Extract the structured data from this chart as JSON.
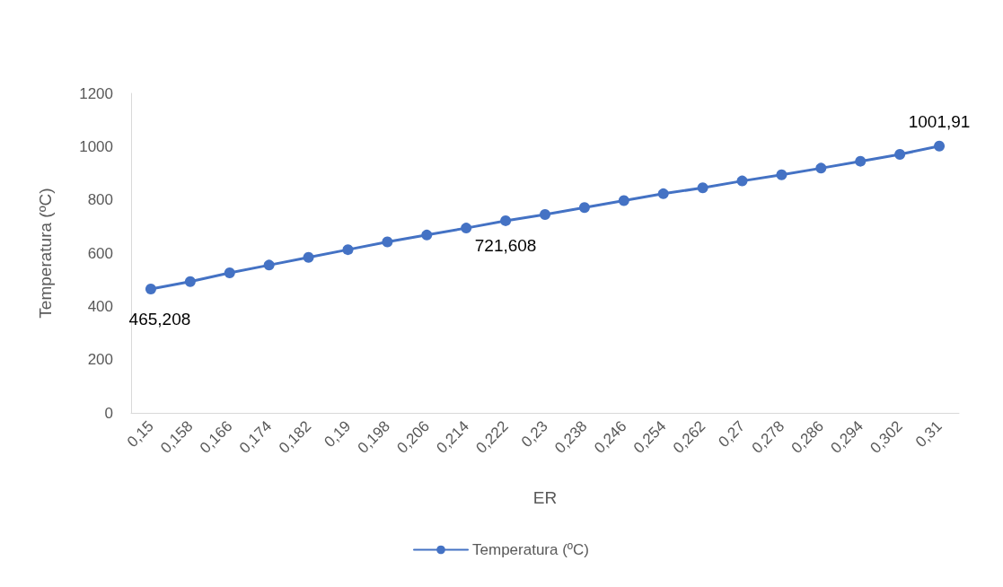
{
  "chart_data": {
    "type": "line",
    "xlabel": "ER",
    "ylabel": "Temperatura (ºC)",
    "categories": [
      "0,15",
      "0,158",
      "0,166",
      "0,174",
      "0,182",
      "0,19",
      "0,198",
      "0,206",
      "0,214",
      "0,222",
      "0,23",
      "0,238",
      "0,246",
      "0,254",
      "0,262",
      "0,27",
      "0,278",
      "0,286",
      "0,294",
      "0,302",
      "0,31"
    ],
    "series": [
      {
        "name": "Temperatura (ºC)",
        "color": "#4472c4",
        "values": [
          465.208,
          493,
          526,
          555,
          584,
          613,
          642,
          668,
          694,
          721.608,
          745,
          771,
          797,
          823,
          845,
          871,
          894,
          919,
          945,
          971,
          1001.91
        ],
        "value_labels": [
          "465,208",
          null,
          null,
          null,
          null,
          null,
          null,
          null,
          null,
          "721,608",
          null,
          null,
          null,
          null,
          null,
          null,
          null,
          null,
          null,
          null,
          "1001,91"
        ]
      }
    ],
    "ylim": [
      0,
      1200
    ],
    "yticks": [
      0,
      200,
      400,
      600,
      800,
      1000,
      1200
    ],
    "grid": false,
    "legend": "bottom",
    "marker": "circle",
    "line_style": "solid"
  }
}
